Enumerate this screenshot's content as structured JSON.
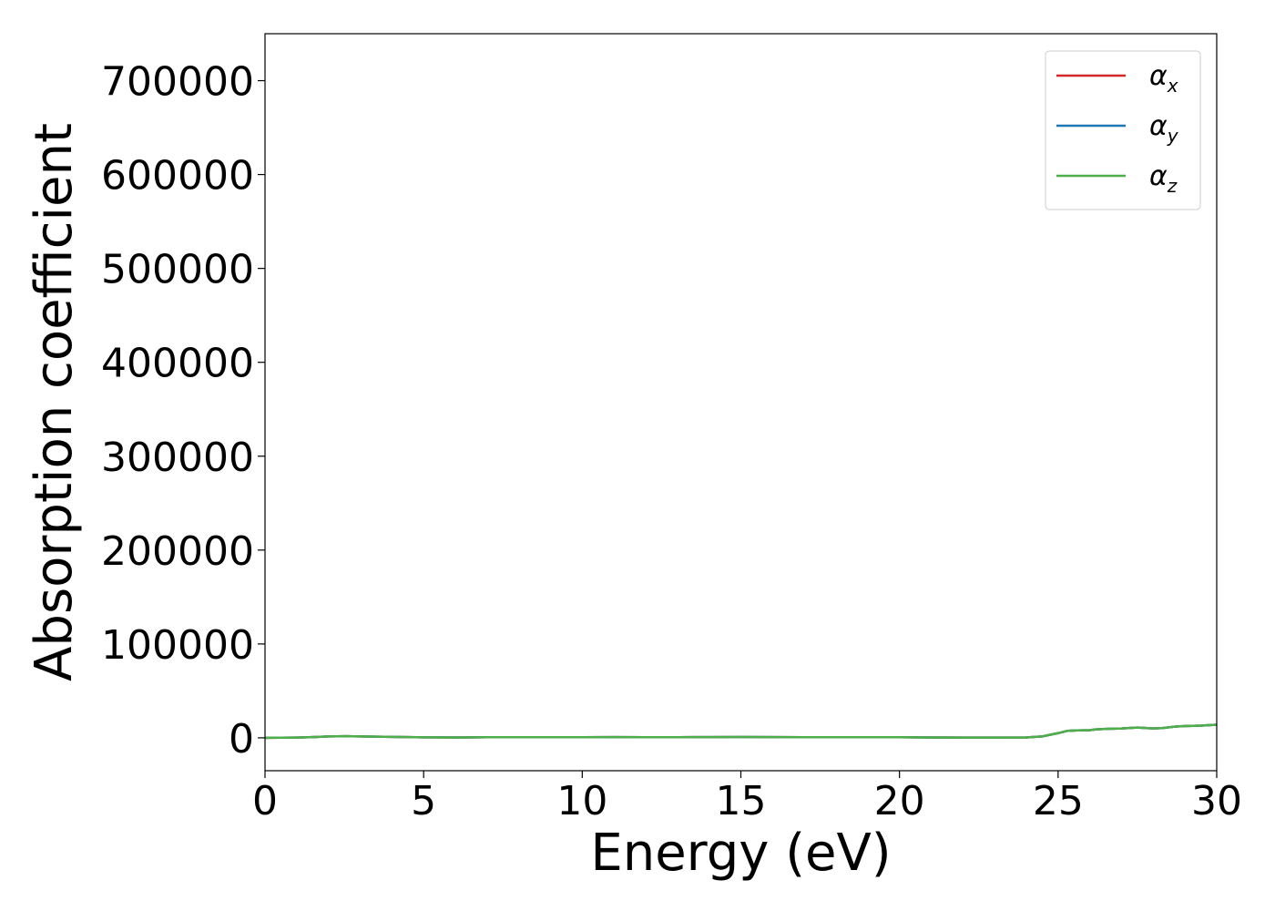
{
  "chart_data": {
    "type": "line",
    "xlabel": "Energy (eV)",
    "ylabel": "Absorption coefficient",
    "xlim": [
      0,
      30
    ],
    "ylim": [
      -35000,
      750000
    ],
    "xticks": [
      0,
      5,
      10,
      15,
      20,
      25,
      30
    ],
    "xtick_labels": [
      "0",
      "5",
      "10",
      "15",
      "20",
      "25",
      "30"
    ],
    "yticks": [
      0,
      100000,
      200000,
      300000,
      400000,
      500000,
      600000,
      700000
    ],
    "ytick_labels": [
      "0",
      "100000",
      "200000",
      "300000",
      "400000",
      "500000",
      "600000",
      "700000"
    ],
    "grid": false,
    "legend_position": "top-right",
    "series": [
      {
        "name": "α",
        "sub": "x",
        "color": "#d62728",
        "x": [
          0,
          1,
          1.5,
          2,
          2.5,
          3,
          4,
          5,
          6,
          7,
          8,
          9,
          10,
          11,
          12,
          13,
          14,
          15,
          16,
          17,
          18,
          19,
          20,
          21,
          22,
          23,
          24,
          24.5,
          25,
          25.3,
          25.6,
          26,
          26.2,
          26.5,
          27,
          27.5,
          28,
          28.3,
          28.7,
          29,
          29.5,
          30
        ],
        "y": [
          0,
          300,
          800,
          1500,
          1800,
          1500,
          1000,
          500,
          400,
          600,
          700,
          600,
          700,
          800,
          700,
          700,
          800,
          900,
          800,
          700,
          700,
          600,
          600,
          400,
          300,
          300,
          400,
          1500,
          5000,
          7500,
          8000,
          8200,
          9000,
          9500,
          10000,
          11000,
          10000,
          10500,
          12000,
          12500,
          13000,
          14000
        ]
      },
      {
        "name": "α",
        "sub": "y",
        "color": "#1f77b4",
        "x": [
          0,
          1,
          1.5,
          2,
          2.5,
          3,
          4,
          5,
          6,
          7,
          8,
          9,
          10,
          11,
          12,
          13,
          14,
          15,
          16,
          17,
          18,
          19,
          20,
          21,
          22,
          23,
          24,
          24.5,
          25,
          25.3,
          25.6,
          26,
          26.2,
          26.5,
          27,
          27.5,
          28,
          28.3,
          28.7,
          29,
          29.5,
          30
        ],
        "y": [
          0,
          300,
          800,
          1500,
          1800,
          1500,
          1000,
          500,
          400,
          600,
          700,
          600,
          700,
          800,
          700,
          700,
          800,
          900,
          800,
          700,
          700,
          600,
          600,
          400,
          300,
          300,
          400,
          1500,
          5000,
          7500,
          8000,
          8200,
          9000,
          9500,
          10000,
          11000,
          10000,
          10500,
          12000,
          12500,
          13000,
          14000
        ]
      },
      {
        "name": "α",
        "sub": "z",
        "color": "#4daf4a",
        "x": [
          0,
          1,
          1.5,
          2,
          2.5,
          3,
          4,
          5,
          6,
          7,
          8,
          9,
          10,
          11,
          12,
          13,
          14,
          15,
          16,
          17,
          18,
          19,
          20,
          21,
          22,
          23,
          24,
          24.5,
          25,
          25.3,
          25.6,
          26,
          26.2,
          26.5,
          27,
          27.5,
          28,
          28.3,
          28.7,
          29,
          29.5,
          30
        ],
        "y": [
          0,
          300,
          800,
          1500,
          1800,
          1500,
          1000,
          500,
          400,
          600,
          700,
          600,
          700,
          800,
          700,
          700,
          800,
          900,
          800,
          700,
          700,
          600,
          600,
          400,
          300,
          300,
          400,
          1500,
          5000,
          7500,
          8000,
          8200,
          9000,
          9500,
          10000,
          11000,
          10000,
          10500,
          12000,
          12500,
          13000,
          14000
        ]
      }
    ]
  }
}
